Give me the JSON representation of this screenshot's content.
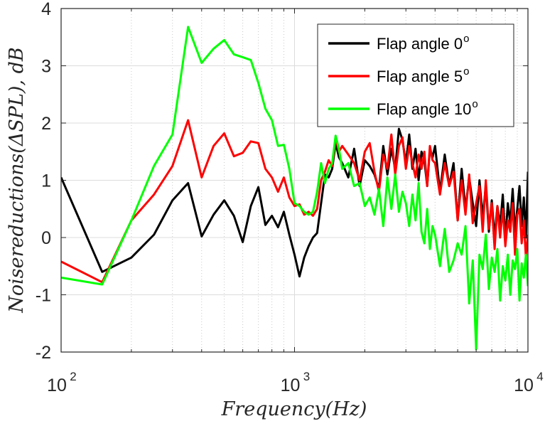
{
  "chart_data": {
    "type": "line",
    "x_scale": "log",
    "xlim": [
      100,
      10000
    ],
    "ylim": [
      -2,
      4
    ],
    "grid": true,
    "legend_position": "top-right",
    "xlabel": "Frequency(Hz)",
    "ylabel": "Noisereductions(ΔSPL), dB",
    "x_tick_labels": [
      {
        "base": "10",
        "exp": "2",
        "value": 100
      },
      {
        "base": "10",
        "exp": "3",
        "value": 1000
      },
      {
        "base": "10",
        "exp": "4",
        "value": 10000
      }
    ],
    "y_ticks": [
      -2,
      -1,
      0,
      1,
      2,
      3,
      4
    ],
    "y_tick_labels": [
      "-2",
      "-1",
      "0",
      "1",
      "2",
      "3",
      "4"
    ],
    "series": [
      {
        "name": "Flap angle 0",
        "name_sup": "o",
        "color": "#000000",
        "x": [
          100,
          150,
          200,
          250,
          300,
          350,
          400,
          450,
          500,
          550,
          600,
          650,
          700,
          750,
          800,
          850,
          900,
          950,
          1000,
          1050,
          1100,
          1150,
          1200,
          1250,
          1300,
          1350,
          1400,
          1450,
          1500,
          1550,
          1600,
          1700,
          1800,
          1900,
          2000,
          2100,
          2200,
          2300,
          2400,
          2500,
          2600,
          2700,
          2800,
          2900,
          3000,
          3100,
          3200,
          3300,
          3400,
          3500,
          3600,
          3700,
          3800,
          3900,
          4000,
          4200,
          4400,
          4600,
          4800,
          5000,
          5200,
          5400,
          5600,
          5800,
          6000,
          6200,
          6400,
          6600,
          6800,
          7000,
          7200,
          7400,
          7600,
          7800,
          8000,
          8200,
          8400,
          8600,
          8800,
          9000,
          9200,
          9400,
          9600,
          9800,
          10000
        ],
        "values": [
          1.05,
          -0.6,
          -0.35,
          0.05,
          0.65,
          0.95,
          0.02,
          0.4,
          0.65,
          0.38,
          -0.08,
          0.55,
          0.88,
          0.22,
          0.38,
          0.18,
          0.45,
          0.05,
          -0.3,
          -0.68,
          -0.35,
          -0.15,
          0.0,
          0.08,
          0.6,
          1.1,
          1.05,
          1.2,
          1.65,
          1.4,
          1.3,
          1.05,
          1.55,
          0.9,
          1.35,
          1.25,
          1.1,
          0.85,
          1.6,
          1.1,
          1.55,
          1.2,
          1.9,
          1.7,
          1.3,
          1.8,
          1.2,
          1.55,
          1.0,
          1.5,
          1.35,
          0.9,
          1.55,
          1.4,
          1.6,
          0.8,
          1.45,
          0.9,
          1.3,
          0.3,
          1.2,
          0.5,
          1.05,
          0.6,
          0.2,
          1.0,
          0.35,
          0.9,
          0.1,
          0.65,
          0.0,
          0.55,
          0.2,
          0.75,
          -0.05,
          0.6,
          0.25,
          0.85,
          0.1,
          0.5,
          0.9,
          0.2,
          0.7,
          0.0,
          1.15
        ]
      },
      {
        "name": "Flap angle 5",
        "name_sup": "o",
        "color": "#ff0000",
        "x": [
          100,
          150,
          200,
          250,
          300,
          350,
          400,
          450,
          500,
          550,
          600,
          650,
          700,
          750,
          800,
          850,
          900,
          950,
          1000,
          1050,
          1100,
          1150,
          1200,
          1250,
          1300,
          1350,
          1400,
          1450,
          1500,
          1550,
          1600,
          1700,
          1800,
          1900,
          2000,
          2100,
          2200,
          2300,
          2400,
          2500,
          2600,
          2700,
          2800,
          2900,
          3000,
          3100,
          3200,
          3300,
          3400,
          3500,
          3600,
          3700,
          3800,
          3900,
          4000,
          4200,
          4400,
          4600,
          4800,
          5000,
          5200,
          5400,
          5600,
          5800,
          6000,
          6200,
          6400,
          6600,
          6800,
          7000,
          7200,
          7400,
          7600,
          7800,
          8000,
          8200,
          8400,
          8600,
          8800,
          9000,
          9200,
          9400,
          9600,
          9800,
          10000
        ],
        "values": [
          -0.42,
          -0.78,
          0.3,
          0.75,
          1.25,
          2.05,
          1.05,
          1.6,
          1.82,
          1.42,
          1.48,
          1.68,
          1.65,
          1.2,
          1.05,
          0.8,
          1.05,
          0.7,
          0.55,
          0.58,
          0.4,
          0.45,
          0.38,
          0.5,
          1.0,
          1.15,
          1.35,
          1.25,
          1.75,
          1.5,
          1.6,
          1.45,
          1.3,
          1.0,
          1.5,
          1.65,
          1.15,
          0.8,
          1.45,
          1.2,
          1.8,
          1.1,
          1.6,
          1.75,
          1.2,
          1.6,
          1.3,
          1.05,
          1.45,
          1.2,
          1.5,
          0.9,
          1.6,
          1.35,
          1.3,
          0.75,
          1.3,
          0.9,
          1.15,
          0.3,
          1.0,
          0.4,
          1.1,
          0.25,
          0.6,
          0.9,
          0.1,
          1.0,
          0.15,
          0.6,
          -0.2,
          0.55,
          0.0,
          0.5,
          -0.15,
          0.3,
          0.1,
          0.6,
          -0.3,
          0.4,
          0.5,
          -0.1,
          0.3,
          -0.35,
          0.05
        ]
      },
      {
        "name": "Flap angle 10",
        "name_sup": "o",
        "color": "#00ff00",
        "x": [
          100,
          150,
          200,
          250,
          300,
          350,
          400,
          450,
          500,
          550,
          600,
          650,
          700,
          750,
          800,
          850,
          900,
          950,
          1000,
          1050,
          1100,
          1150,
          1200,
          1250,
          1300,
          1350,
          1400,
          1450,
          1500,
          1550,
          1600,
          1700,
          1800,
          1900,
          2000,
          2100,
          2200,
          2300,
          2400,
          2500,
          2600,
          2700,
          2800,
          2900,
          3000,
          3100,
          3200,
          3300,
          3400,
          3500,
          3600,
          3700,
          3800,
          3900,
          4000,
          4200,
          4400,
          4600,
          4800,
          5000,
          5200,
          5400,
          5600,
          5800,
          6000,
          6200,
          6400,
          6600,
          6800,
          7000,
          7200,
          7400,
          7600,
          7800,
          8000,
          8200,
          8400,
          8600,
          8800,
          9000,
          9200,
          9400,
          9600,
          9800,
          10000
        ],
        "values": [
          -0.7,
          -0.82,
          0.3,
          1.25,
          1.8,
          3.68,
          3.05,
          3.3,
          3.45,
          3.2,
          3.15,
          3.1,
          2.7,
          2.25,
          2.05,
          1.6,
          1.62,
          1.2,
          0.6,
          0.55,
          0.45,
          0.4,
          0.45,
          0.8,
          1.3,
          0.95,
          1.2,
          1.3,
          1.78,
          1.55,
          1.2,
          1.3,
          0.9,
          0.95,
          0.55,
          0.7,
          0.4,
          0.85,
          0.2,
          1.05,
          0.5,
          1.1,
          0.45,
          0.8,
          0.6,
          0.2,
          0.75,
          0.3,
          0.95,
          0.1,
          -0.1,
          0.5,
          -0.2,
          0.2,
          0.05,
          -0.5,
          0.15,
          -0.6,
          -0.4,
          -0.1,
          -0.3,
          0.2,
          -1.15,
          -0.4,
          -1.95,
          -0.3,
          -0.55,
          0.05,
          -0.9,
          -0.35,
          -0.6,
          -0.2,
          -1.1,
          -0.5,
          -0.75,
          -0.3,
          -1.0,
          -0.4,
          -0.55,
          -0.2,
          -1.1,
          -0.45,
          -0.7,
          -0.3,
          -0.85
        ]
      }
    ]
  }
}
